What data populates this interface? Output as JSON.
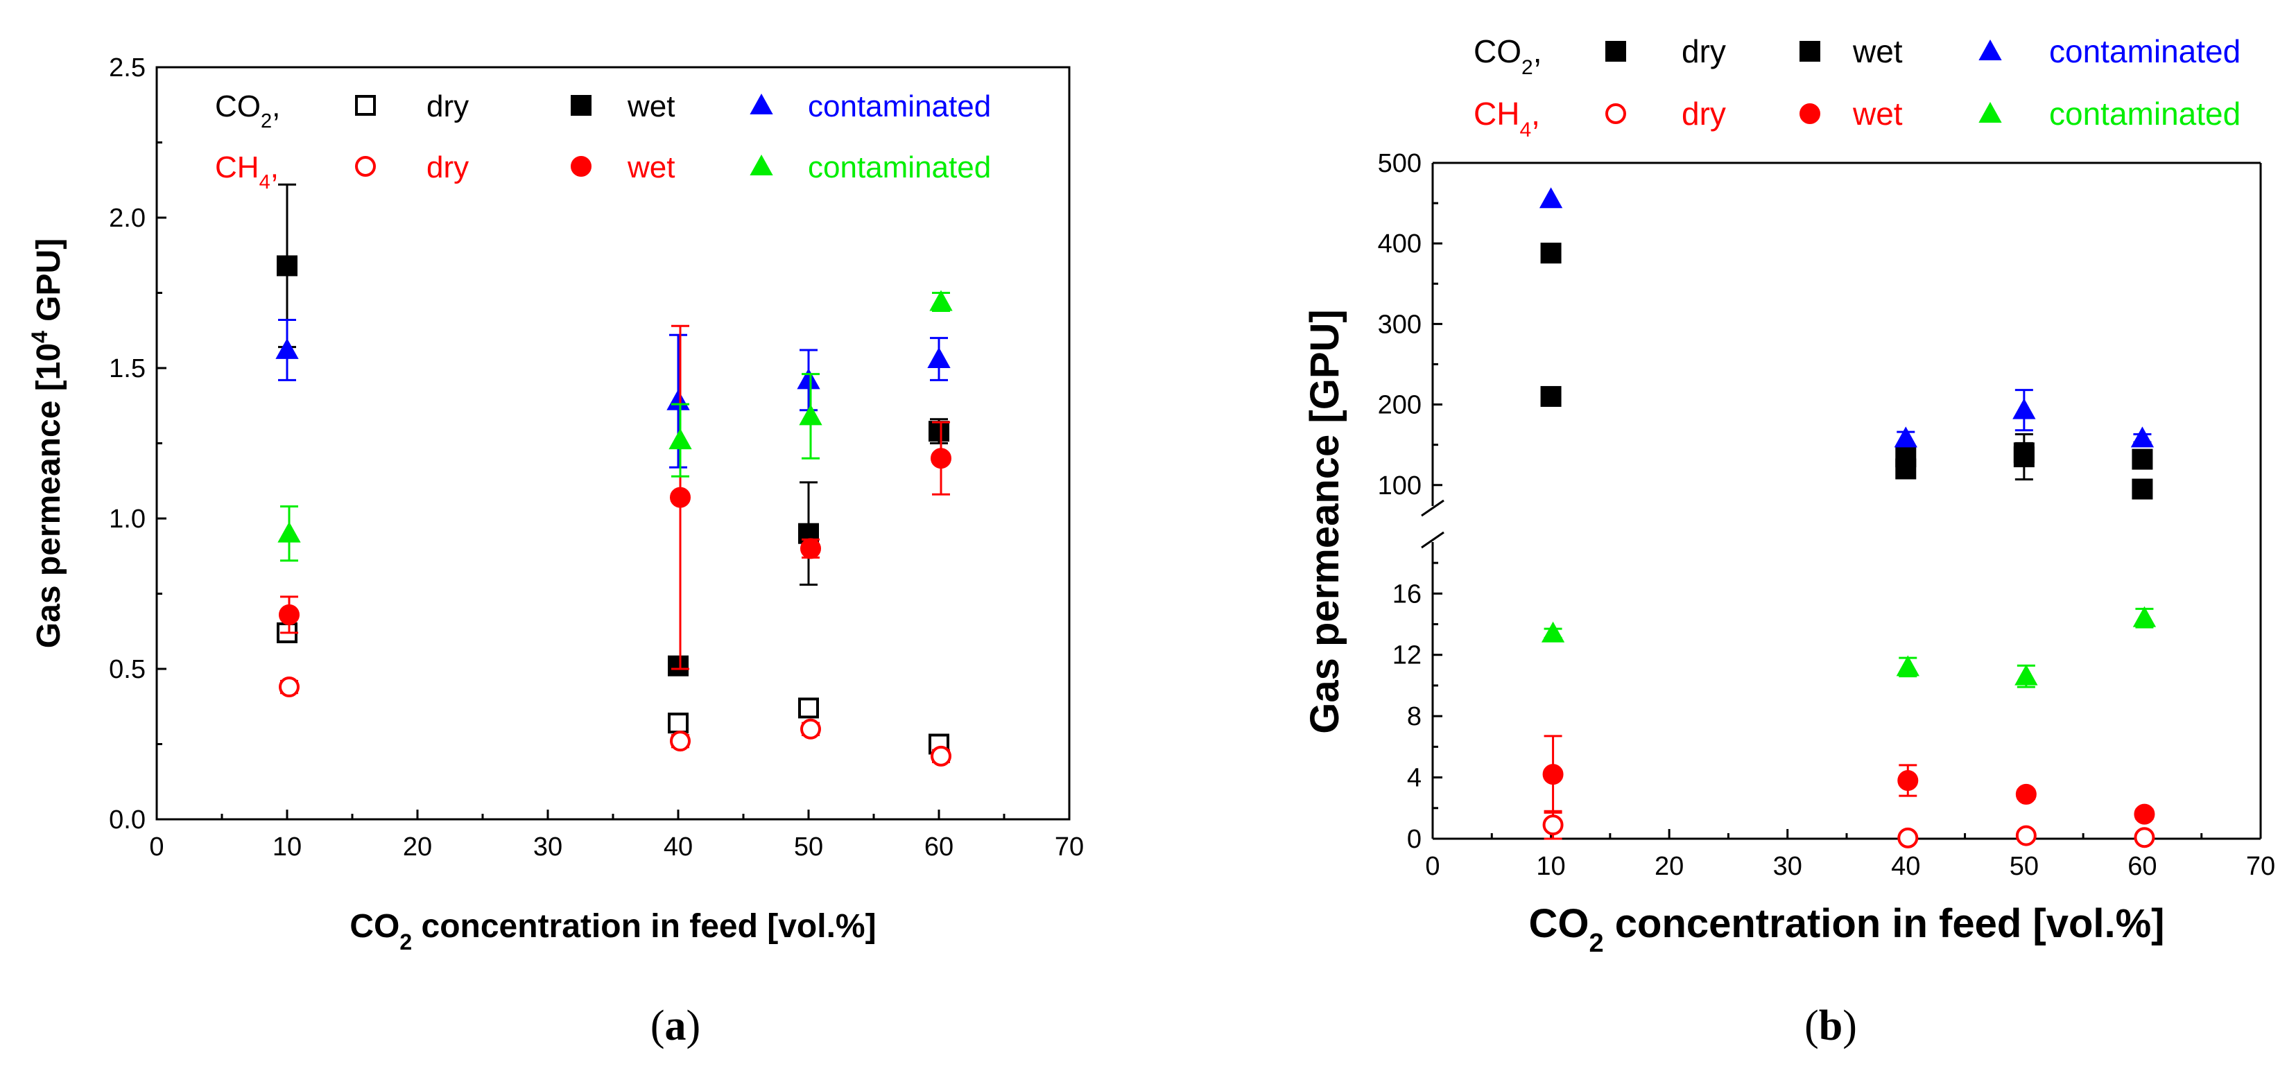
{
  "chart_data": [
    {
      "panel_label": "(a)",
      "panel_label_parts": [
        "(",
        "a",
        ")"
      ],
      "type": "scatter",
      "xlabel": {
        "pre": "CO",
        "sub": "2",
        "post": " concentration in feed [vol.%]"
      },
      "ylabel": {
        "pre": "Gas permeance [10",
        "sup": "4",
        "post": " GPU]"
      },
      "xlim": [
        0,
        70
      ],
      "ylim": [
        0,
        2.5
      ],
      "xticks": [
        "0",
        "10",
        "20",
        "30",
        "40",
        "50",
        "60",
        "70"
      ],
      "xtick_values": [
        0,
        10,
        20,
        30,
        40,
        50,
        60,
        70
      ],
      "yticks": [
        "0.0",
        "0.5",
        "1.0",
        "1.5",
        "2.0",
        "2.5"
      ],
      "ytick_values": [
        0,
        0.5,
        1.0,
        1.5,
        2.0,
        2.5
      ],
      "grid": false,
      "legend_placement": "top-left",
      "legend": {
        "rows": [
          {
            "gas": {
              "pre": "CO",
              "sub": "2",
              "post": ","
            },
            "color": "#000000",
            "entries": [
              {
                "marker": "open-square",
                "label": "dry",
                "color": "#000000",
                "label_color": "#000000"
              },
              {
                "marker": "filled-square",
                "label": "wet",
                "color": "#000000",
                "label_color": "#000000"
              },
              {
                "marker": "filled-triangle",
                "label": "contaminated",
                "color": "#0000ff",
                "label_color": "#0000ff"
              }
            ]
          },
          {
            "gas": {
              "pre": "CH",
              "sub": "4",
              "post": ","
            },
            "color": "#ff0000",
            "entries": [
              {
                "marker": "open-circle",
                "label": "dry",
                "color": "#ff0000",
                "label_color": "#ff0000"
              },
              {
                "marker": "filled-circle",
                "label": "wet",
                "color": "#ff0000",
                "label_color": "#ff0000"
              },
              {
                "marker": "filled-triangle",
                "label": "contaminated",
                "color": "#00ee00",
                "label_color": "#00ee00"
              }
            ]
          }
        ]
      },
      "series": [
        {
          "gas": "CO2",
          "condition": "dry",
          "marker": "open-square",
          "color": "#000000",
          "x": [
            10,
            40,
            50,
            60
          ],
          "y": [
            0.62,
            0.32,
            0.37,
            0.25
          ],
          "err": [
            0.03,
            0.03,
            0.03,
            0.02
          ]
        },
        {
          "gas": "CO2",
          "condition": "wet",
          "marker": "filled-square",
          "color": "#000000",
          "x": [
            10,
            40,
            50,
            60
          ],
          "y": [
            1.84,
            0.51,
            0.95,
            1.29
          ],
          "err": [
            0.27,
            0.02,
            0.17,
            0.04
          ]
        },
        {
          "gas": "CO2",
          "condition": "contaminated",
          "marker": "filled-triangle",
          "color": "#0000ff",
          "x": [
            10,
            40,
            50,
            60
          ],
          "y": [
            1.56,
            1.39,
            1.46,
            1.53
          ],
          "err": [
            0.1,
            0.22,
            0.1,
            0.07
          ]
        },
        {
          "gas": "CH4",
          "condition": "dry",
          "marker": "open-circle",
          "color": "#ff0000",
          "x": [
            10,
            40,
            50,
            60
          ],
          "y": [
            0.44,
            0.26,
            0.3,
            0.21
          ],
          "err": [
            0.02,
            0.02,
            0.02,
            0.02
          ]
        },
        {
          "gas": "CH4",
          "condition": "wet",
          "marker": "filled-circle",
          "color": "#ff0000",
          "x": [
            10,
            40,
            50,
            60
          ],
          "y": [
            0.68,
            1.07,
            0.9,
            1.2
          ],
          "err": [
            0.06,
            0.57,
            0.03,
            0.12
          ]
        },
        {
          "gas": "CH4",
          "condition": "contaminated",
          "marker": "filled-triangle",
          "color": "#00ee00",
          "x": [
            10,
            40,
            50,
            60
          ],
          "y": [
            0.95,
            1.26,
            1.34,
            1.72
          ],
          "err": [
            0.09,
            0.12,
            0.14,
            0.03
          ]
        }
      ]
    },
    {
      "panel_label": "(b)",
      "panel_label_parts": [
        "(",
        "b",
        ")"
      ],
      "type": "scatter",
      "broken_y_axis": true,
      "xlabel": {
        "pre": "CO",
        "sub": "2",
        "post": " concentration in feed [vol.%]"
      },
      "ylabel": {
        "pre": "Gas permeance [GPU]",
        "sup": "",
        "post": ""
      },
      "xlim": [
        0,
        70
      ],
      "ylim_upper": [
        80,
        500
      ],
      "ylim_lower": [
        0,
        19
      ],
      "xticks": [
        "0",
        "10",
        "20",
        "30",
        "40",
        "50",
        "60",
        "70"
      ],
      "xtick_values": [
        0,
        10,
        20,
        30,
        40,
        50,
        60,
        70
      ],
      "yticks_upper": [
        "100",
        "200",
        "300",
        "400",
        "500"
      ],
      "ytick_values_upper": [
        100,
        200,
        300,
        400,
        500
      ],
      "yticks_lower": [
        "0",
        "4",
        "8",
        "12",
        "16"
      ],
      "ytick_values_lower": [
        0,
        4,
        8,
        12,
        16
      ],
      "grid": false,
      "legend_placement": "top",
      "legend": {
        "rows": [
          {
            "gas": {
              "pre": "CO",
              "sub": "2",
              "post": ","
            },
            "color": "#000000",
            "entries": [
              {
                "marker": "filled-square",
                "label": "dry",
                "color": "#000000",
                "label_color": "#000000"
              },
              {
                "marker": "filled-square",
                "label": "wet",
                "color": "#000000",
                "label_color": "#000000"
              },
              {
                "marker": "filled-triangle",
                "label": "contaminated",
                "color": "#0000ff",
                "label_color": "#0000ff"
              }
            ]
          },
          {
            "gas": {
              "pre": "CH",
              "sub": "4",
              "post": ","
            },
            "color": "#ff0000",
            "entries": [
              {
                "marker": "open-circle",
                "label": "dry",
                "color": "#ff0000",
                "label_color": "#ff0000"
              },
              {
                "marker": "filled-circle",
                "label": "wet",
                "color": "#ff0000",
                "label_color": "#ff0000"
              },
              {
                "marker": "filled-triangle",
                "label": "contaminated",
                "color": "#00ee00",
                "label_color": "#00ee00"
              }
            ]
          }
        ]
      },
      "series": [
        {
          "gas": "CO2",
          "condition": "dry",
          "marker": "filled-square",
          "color": "#000000",
          "x": [
            10,
            40,
            50,
            60
          ],
          "y": [
            210,
            120,
            135,
            95
          ],
          "err": [
            10,
            8,
            28,
            6
          ]
        },
        {
          "gas": "CO2",
          "condition": "wet",
          "marker": "filled-square",
          "color": "#000000",
          "x": [
            10,
            40,
            50,
            60
          ],
          "y": [
            388,
            135,
            140,
            132
          ],
          "err": [
            8,
            10,
            12,
            8
          ]
        },
        {
          "gas": "CO2",
          "condition": "contaminated",
          "marker": "filled-triangle",
          "color": "#0000ff",
          "x": [
            10,
            40,
            50,
            60
          ],
          "y": [
            455,
            158,
            193,
            158
          ],
          "err": [
            0,
            8,
            25,
            5
          ]
        },
        {
          "gas": "CH4",
          "condition": "dry",
          "marker": "open-circle",
          "color": "#ff0000",
          "x": [
            10,
            40,
            50,
            60
          ],
          "y": [
            0.9,
            0.05,
            0.2,
            0.08
          ],
          "err": [
            0.9,
            0.1,
            0.2,
            0.1
          ]
        },
        {
          "gas": "CH4",
          "condition": "wet",
          "marker": "filled-circle",
          "color": "#ff0000",
          "x": [
            10,
            40,
            50,
            60
          ],
          "y": [
            4.2,
            3.8,
            2.9,
            1.6
          ],
          "err": [
            2.5,
            1.0,
            0.3,
            0.3
          ]
        },
        {
          "gas": "CH4",
          "condition": "contaminated",
          "marker": "filled-triangle",
          "color": "#00ee00",
          "x": [
            10,
            40,
            50,
            60
          ],
          "y": [
            13.4,
            11.2,
            10.6,
            14.4
          ],
          "err": [
            0.3,
            0.6,
            0.7,
            0.6
          ]
        }
      ]
    }
  ]
}
